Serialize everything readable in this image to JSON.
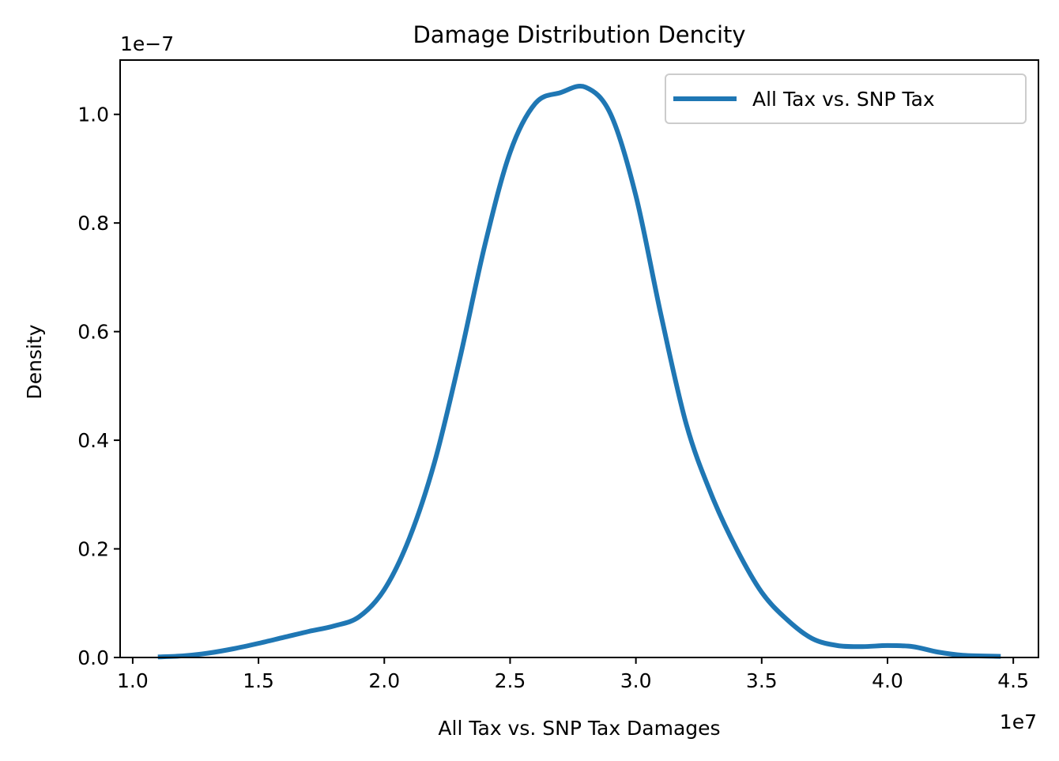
{
  "chart_data": {
    "type": "line",
    "title": "Damage Distribution Dencity",
    "xlabel": "All Tax vs. SNP Tax Damages",
    "ylabel": "Density",
    "x_offset_label": "1e7",
    "y_offset_label": "1e−7",
    "xlim": [
      0.95,
      4.6
    ],
    "ylim": [
      0.0,
      1.1
    ],
    "x_ticks": [
      1.0,
      1.5,
      2.0,
      2.5,
      3.0,
      3.5,
      4.0,
      4.5
    ],
    "x_tick_labels": [
      "1.0",
      "1.5",
      "2.0",
      "2.5",
      "3.0",
      "3.5",
      "4.0",
      "4.5"
    ],
    "y_ticks": [
      0.0,
      0.2,
      0.4,
      0.6,
      0.8,
      1.0
    ],
    "y_tick_labels": [
      "0.0",
      "0.2",
      "0.4",
      "0.6",
      "0.8",
      "1.0"
    ],
    "grid": false,
    "legend_position": "top-right",
    "series": [
      {
        "name": "All Tax vs. SNP Tax",
        "color": "#1f77b4",
        "x": [
          1.1,
          1.2,
          1.3,
          1.4,
          1.5,
          1.6,
          1.7,
          1.8,
          1.9,
          2.0,
          2.1,
          2.2,
          2.3,
          2.4,
          2.5,
          2.6,
          2.7,
          2.8,
          2.9,
          3.0,
          3.1,
          3.2,
          3.3,
          3.4,
          3.5,
          3.6,
          3.7,
          3.8,
          3.9,
          4.0,
          4.1,
          4.2,
          4.3,
          4.45
        ],
        "y": [
          0.001,
          0.003,
          0.008,
          0.016,
          0.026,
          0.037,
          0.048,
          0.058,
          0.075,
          0.125,
          0.22,
          0.36,
          0.55,
          0.76,
          0.93,
          1.02,
          1.04,
          1.05,
          1.0,
          0.85,
          0.63,
          0.43,
          0.3,
          0.2,
          0.12,
          0.07,
          0.035,
          0.022,
          0.02,
          0.022,
          0.02,
          0.01,
          0.004,
          0.002
        ]
      }
    ]
  }
}
